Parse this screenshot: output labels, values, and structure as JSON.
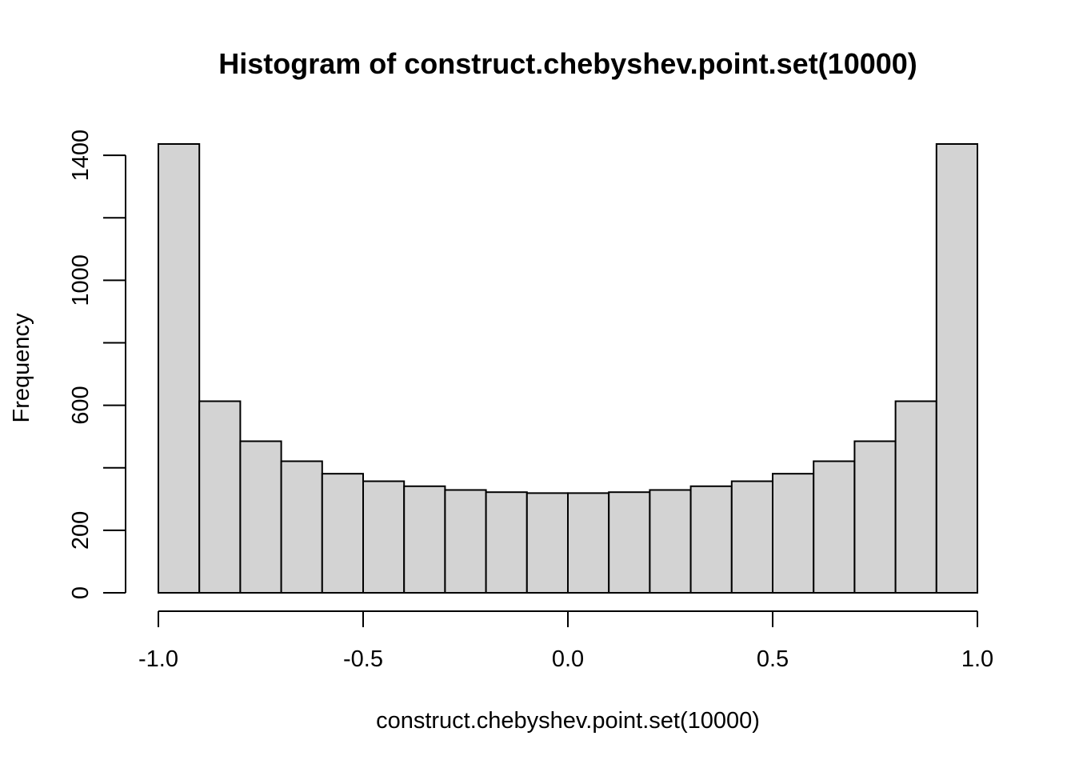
{
  "chart_data": {
    "type": "bar",
    "title": "Histogram of construct.chebyshev.point.set(10000)",
    "xlabel": "construct.chebyshev.point.set(10000)",
    "ylabel": "Frequency",
    "bin_edges": [
      -1.0,
      -0.9,
      -0.8,
      -0.7,
      -0.6,
      -0.5,
      -0.4,
      -0.3,
      -0.2,
      -0.1,
      0.0,
      0.1,
      0.2,
      0.3,
      0.4,
      0.5,
      0.6,
      0.7,
      0.8,
      0.9,
      1.0
    ],
    "values": [
      1436,
      613,
      485,
      421,
      381,
      357,
      341,
      329,
      322,
      319,
      319,
      322,
      329,
      341,
      357,
      381,
      421,
      485,
      613,
      1436
    ],
    "xlim": [
      -1.0,
      1.0
    ],
    "ylim": [
      0,
      1436
    ],
    "x_ticks": [
      -1.0,
      -0.5,
      0.0,
      0.5,
      1.0
    ],
    "x_tick_labels": [
      "-1.0",
      "-0.5",
      "0.0",
      "0.5",
      "1.0"
    ],
    "y_ticks": [
      0,
      200,
      400,
      600,
      800,
      1000,
      1200,
      1400
    ],
    "y_tick_labels": [
      "0",
      "200",
      "",
      "600",
      "",
      "1000",
      "",
      "1400"
    ],
    "bar_color": "#d3d3d3",
    "edge_color": "#000000",
    "grid": false,
    "legend": "none"
  }
}
